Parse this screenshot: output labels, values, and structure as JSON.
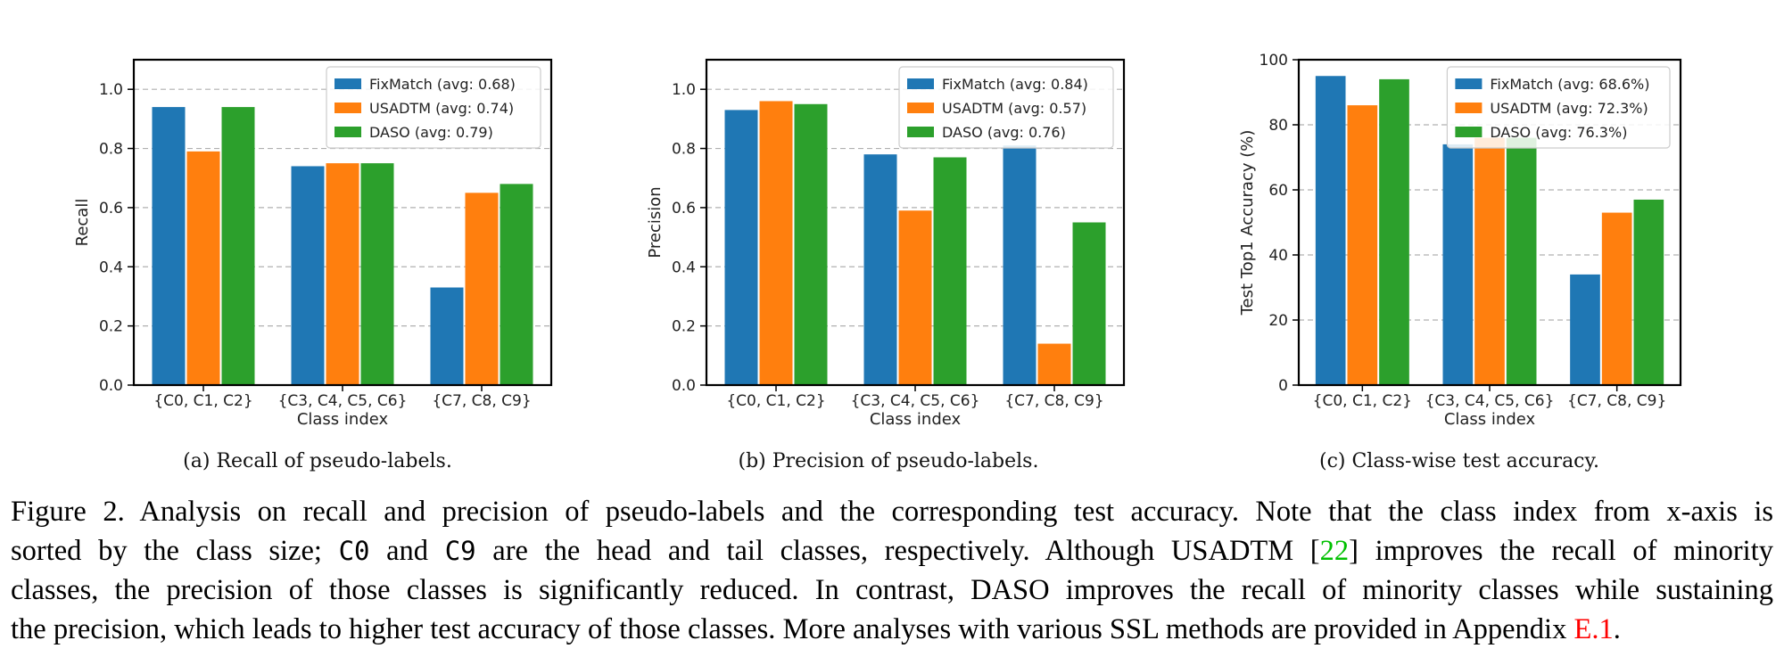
{
  "chart_data": [
    {
      "type": "bar",
      "title": "",
      "xlabel": "Class index",
      "ylabel": "Recall",
      "categories": [
        "{C0, C1, C2}",
        "{C3, C4, C5, C6}",
        "{C7, C8, C9}"
      ],
      "ylim": [
        0,
        1.1
      ],
      "yticks": [
        "0.0",
        "0.2",
        "0.4",
        "0.6",
        "0.8",
        "1.0"
      ],
      "legend_position": "top-right",
      "grid": "horizontal dashed",
      "series": [
        {
          "name": "FixMatch (avg: 0.68)",
          "color": "#1f77b4",
          "values": [
            0.94,
            0.74,
            0.33
          ]
        },
        {
          "name": "USADTM (avg: 0.74)",
          "color": "#ff7f0e",
          "values": [
            0.79,
            0.75,
            0.65
          ]
        },
        {
          "name": "DASO (avg: 0.79)",
          "color": "#2ca02c",
          "values": [
            0.94,
            0.75,
            0.68
          ]
        }
      ]
    },
    {
      "type": "bar",
      "title": "",
      "xlabel": "Class index",
      "ylabel": "Precision",
      "categories": [
        "{C0, C1, C2}",
        "{C3, C4, C5, C6}",
        "{C7, C8, C9}"
      ],
      "ylim": [
        0,
        1.1
      ],
      "yticks": [
        "0.0",
        "0.2",
        "0.4",
        "0.6",
        "0.8",
        "1.0"
      ],
      "legend_position": "top-right",
      "grid": "horizontal dashed",
      "series": [
        {
          "name": "FixMatch (avg: 0.84)",
          "color": "#1f77b4",
          "values": [
            0.93,
            0.78,
            0.81
          ]
        },
        {
          "name": "USADTM (avg: 0.57)",
          "color": "#ff7f0e",
          "values": [
            0.96,
            0.59,
            0.14
          ]
        },
        {
          "name": "DASO (avg: 0.76)",
          "color": "#2ca02c",
          "values": [
            0.95,
            0.77,
            0.55
          ]
        }
      ]
    },
    {
      "type": "bar",
      "title": "",
      "xlabel": "Class index",
      "ylabel": "Test Top1 Accuracy (%)",
      "categories": [
        "{C0, C1, C2}",
        "{C3, C4, C5, C6}",
        "{C7, C8, C9}"
      ],
      "ylim": [
        0,
        100
      ],
      "yticks": [
        "0",
        "20",
        "40",
        "60",
        "80",
        "100"
      ],
      "legend_position": "top-right",
      "grid": "horizontal dashed",
      "series": [
        {
          "name": "FixMatch (avg: 68.6%)",
          "color": "#1f77b4",
          "values": [
            95,
            74,
            34
          ]
        },
        {
          "name": "USADTM (avg: 72.3%)",
          "color": "#ff7f0e",
          "values": [
            86,
            76,
            53
          ]
        },
        {
          "name": "DASO (avg: 76.3%)",
          "color": "#2ca02c",
          "values": [
            94,
            76,
            57
          ]
        }
      ]
    }
  ],
  "subcaptions": [
    "(a) Recall of pseudo-labels.",
    "(b) Precision of pseudo-labels.",
    "(c) Class-wise test accuracy."
  ],
  "caption": {
    "line1": "Figure 2.  Analysis on recall and precision of pseudo-labels and the corresponding test accuracy.  Note that the class index from x-axis is",
    "line2_a": "sorted by the class size;",
    "line2_code1": "C0",
    "line2_b": "and",
    "line2_code2": "C9",
    "line2_c": "are the head and tail classes, respectively.  Although USADTM [",
    "line2_ref": "22",
    "line2_d": "] improves the recall of minority",
    "line3": "classes, the precision of those classes is significantly reduced. In contrast, DASO improves the recall of minority classes while sustaining",
    "line4_a": "the precision, which leads to higher test accuracy of those classes. More analyses with various SSL methods are provided in Appendix",
    "line4_ref": "E.1",
    "line4_b": "."
  }
}
